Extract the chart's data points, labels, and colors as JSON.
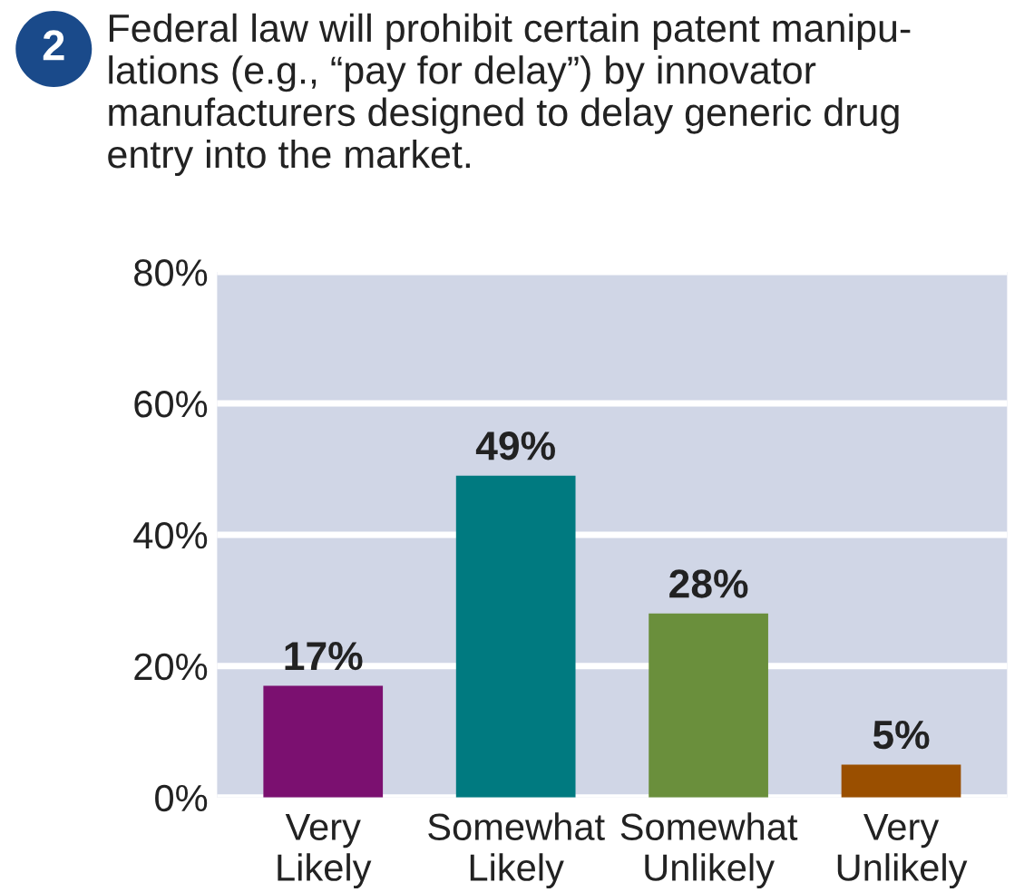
{
  "chart_data": {
    "type": "bar",
    "title": "Federal law will prohibit certain patent manipu-\nlations (e.g., “pay for delay”) by innovator\nmanufacturers designed to delay generic drug\nentry into the market.",
    "annotations": [
      "2"
    ],
    "categories": [
      "Very\nLikely",
      "Somewhat\nLikely",
      "Somewhat\nUnlikely",
      "Very\nUnlikely"
    ],
    "values": [
      17,
      49,
      28,
      5
    ],
    "colors": [
      "#7b1070",
      "#007a80",
      "#6a8f3c",
      "#9a4f00"
    ],
    "value_labels": [
      "17%",
      "49%",
      "28%",
      "5%"
    ],
    "ylim": [
      0,
      80
    ],
    "yticks": [
      {
        "value": 0,
        "label": "0%"
      },
      {
        "value": 20,
        "label": "20%"
      },
      {
        "value": 40,
        "label": "40%"
      },
      {
        "value": 60,
        "label": "60%"
      },
      {
        "value": 80,
        "label": "80%"
      }
    ],
    "grid": "y"
  }
}
